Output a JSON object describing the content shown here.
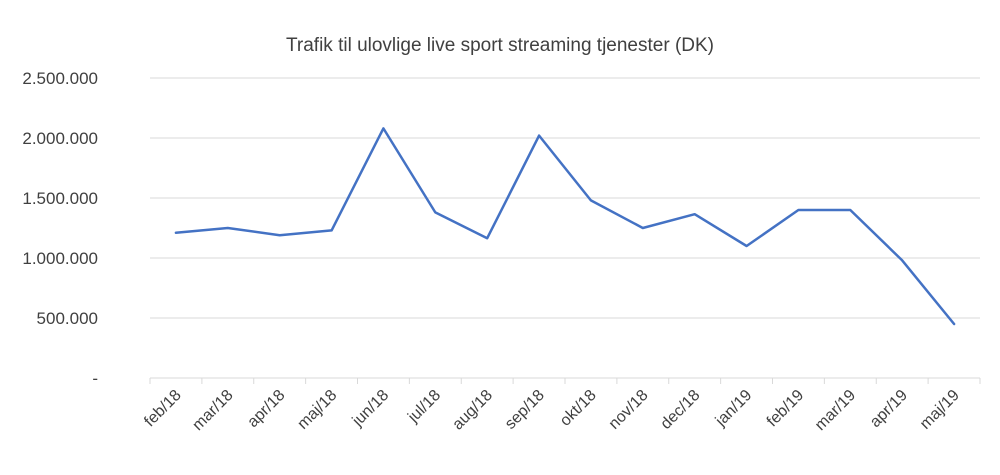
{
  "chart_data": {
    "type": "line",
    "title": "Trafik til ulovlige live sport streaming tjenester (DK)",
    "xlabel": "",
    "ylabel": "",
    "categories": [
      "feb/18",
      "mar/18",
      "apr/18",
      "maj/18",
      "jun/18",
      "jul/18",
      "aug/18",
      "sep/18",
      "okt/18",
      "nov/18",
      "dec/18",
      "jan/19",
      "feb/19",
      "mar/19",
      "apr/19",
      "maj/19"
    ],
    "series": [
      {
        "values": [
          1210000,
          1250000,
          1190000,
          1230000,
          2080000,
          1380000,
          1165000,
          2020000,
          1480000,
          1250000,
          1365000,
          1100000,
          1400000,
          1400000,
          980000,
          450000
        ],
        "color": "#4472c4"
      }
    ],
    "ylim": [
      0,
      2500000
    ],
    "yticks": [
      0,
      500000,
      1000000,
      1500000,
      2000000,
      2500000
    ],
    "ytick_labels": [
      "-",
      "500.000",
      "1.000.000",
      "1.500.000",
      "2.000.000",
      "2.500.000"
    ],
    "grid": true,
    "legend": "none"
  }
}
